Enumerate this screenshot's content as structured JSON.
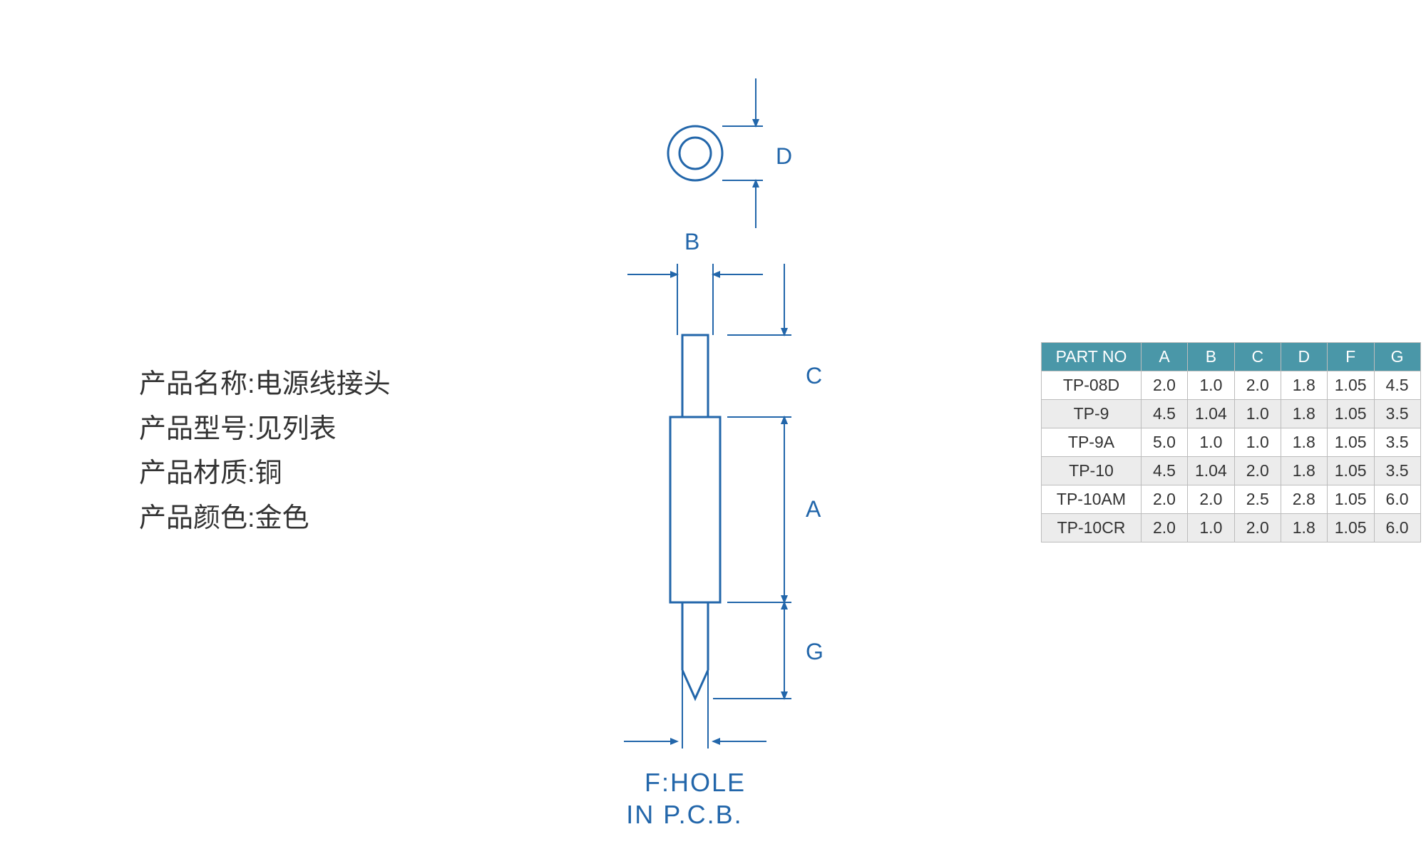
{
  "info": {
    "name_label": "产品名称:",
    "name_value": " 电源线接头",
    "model_label": "产品型号:",
    "model_value": " 见列表",
    "material_label": "产品材质:",
    "material_value": " 铜",
    "color_label": "产品颜色:",
    "color_value": " 金色"
  },
  "diagram": {
    "label_D": "D",
    "label_B": "B",
    "label_C": "C",
    "label_A": "A",
    "label_G": "G",
    "fhole_line1": "F:HOLE",
    "fhole_line2": "IN  P.C.B.",
    "colors": {
      "line": "#2266aa",
      "bg": "#ffffff"
    },
    "stroke_width_drawing": 3,
    "stroke_width_dim": 2,
    "font_size_dim": 32,
    "font_size_fhole": 36
  },
  "table": {
    "header_bg": "#4a97a8",
    "header_fg": "#ffffff",
    "border_color": "#bcbcbc",
    "row_odd_bg": "#ffffff",
    "row_even_bg": "#ececec",
    "text_color": "#333333",
    "font_size": 23,
    "columns": [
      "PART NO",
      "A",
      "B",
      "C",
      "D",
      "F",
      "G"
    ],
    "rows": [
      [
        "TP-08D",
        "2.0",
        "1.0",
        "2.0",
        "1.8",
        "1.05",
        "4.5"
      ],
      [
        "TP-9",
        "4.5",
        "1.04",
        "1.0",
        "1.8",
        "1.05",
        "3.5"
      ],
      [
        "TP-9A",
        "5.0",
        "1.0",
        "1.0",
        "1.8",
        "1.05",
        "3.5"
      ],
      [
        "TP-10",
        "4.5",
        "1.04",
        "2.0",
        "1.8",
        "1.05",
        "3.5"
      ],
      [
        "TP-10AM",
        "2.0",
        "2.0",
        "2.5",
        "2.8",
        "1.05",
        "6.0"
      ],
      [
        "TP-10CR",
        "2.0",
        "1.0",
        "2.0",
        "1.8",
        "1.05",
        "6.0"
      ]
    ]
  }
}
